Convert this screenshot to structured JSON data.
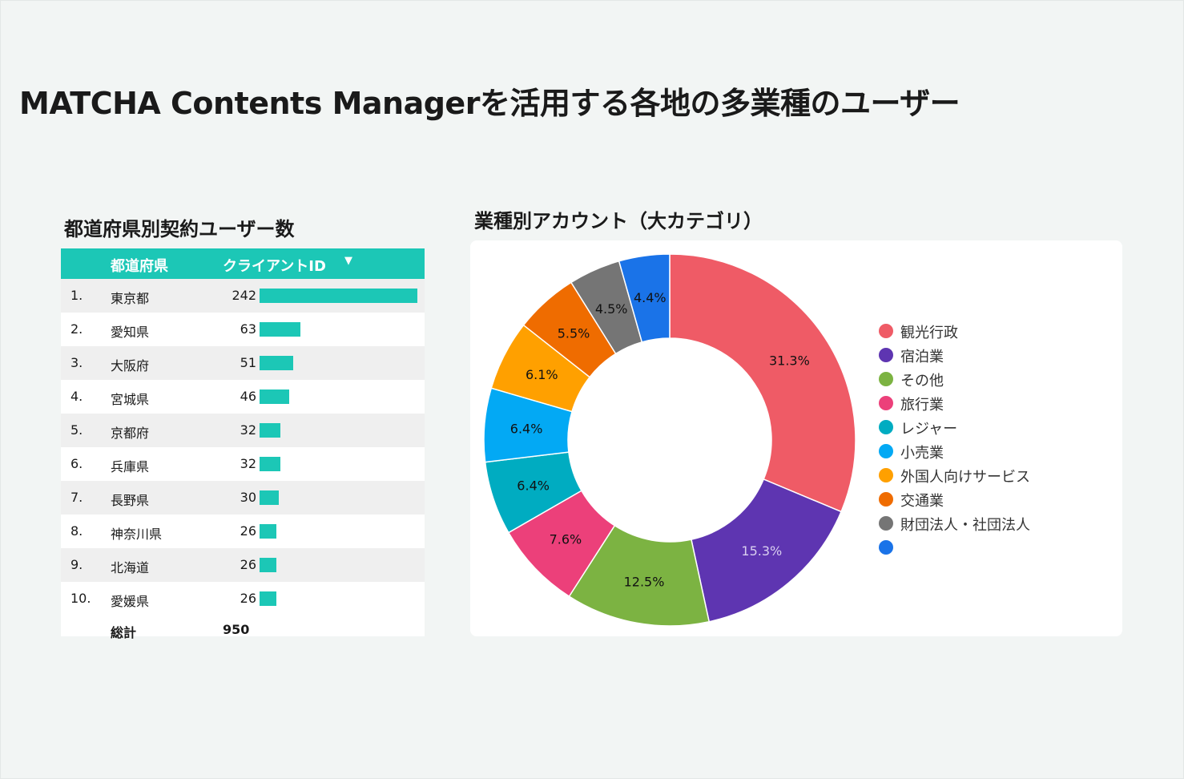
{
  "page_title": "MATCHA Contents Managerを活用する各地の多業種のユーザー",
  "table": {
    "title": "都道府県別契約ユーザー数",
    "col_pref": "都道府県",
    "col_id": "クライアントID",
    "sort_icon": "sort-descending-icon",
    "bar_color": "#1cc7b6",
    "bar_max": 242,
    "rows": [
      {
        "rank": "1.",
        "pref": "東京都",
        "value": 242
      },
      {
        "rank": "2.",
        "pref": "愛知県",
        "value": 63
      },
      {
        "rank": "3.",
        "pref": "大阪府",
        "value": 51
      },
      {
        "rank": "4.",
        "pref": "宮城県",
        "value": 46
      },
      {
        "rank": "5.",
        "pref": "京都府",
        "value": 32
      },
      {
        "rank": "6.",
        "pref": "兵庫県",
        "value": 32
      },
      {
        "rank": "7.",
        "pref": "長野県",
        "value": 30
      },
      {
        "rank": "8.",
        "pref": "神奈川県",
        "value": 26
      },
      {
        "rank": "9.",
        "pref": "北海道",
        "value": 26
      },
      {
        "rank": "10.",
        "pref": "愛媛県",
        "value": 26
      }
    ],
    "total_label": "総計",
    "total_value": "950"
  },
  "chart_data": {
    "type": "pie",
    "title": "業種別アカウント（大カテゴリ）",
    "donut": true,
    "legend_position": "right",
    "series": [
      {
        "label": "観光行政",
        "value": 31.3,
        "display": "31.3%",
        "color": "#ef5b66"
      },
      {
        "label": "宿泊業",
        "value": 15.3,
        "display": "15.3%",
        "color": "#5e35b1"
      },
      {
        "label": "その他",
        "value": 12.5,
        "display": "12.5%",
        "color": "#7cb342"
      },
      {
        "label": "旅行業",
        "value": 7.6,
        "display": "7.6%",
        "color": "#ec407a"
      },
      {
        "label": "レジャー",
        "value": 6.4,
        "display": "6.4%",
        "color": "#00acc1"
      },
      {
        "label": "小売業",
        "value": 6.4,
        "display": "6.4%",
        "color": "#03a9f4"
      },
      {
        "label": "外国人向けサービス",
        "value": 6.1,
        "display": "6.1%",
        "color": "#ffa000"
      },
      {
        "label": "交通業",
        "value": 5.5,
        "display": "5.5%",
        "color": "#ef6c00"
      },
      {
        "label": "財団法人・社団法人",
        "value": 4.5,
        "display": "4.5%",
        "color": "#757575"
      },
      {
        "label": "",
        "value": 4.4,
        "display": "4.4%",
        "color": "#1a73e8"
      }
    ]
  }
}
